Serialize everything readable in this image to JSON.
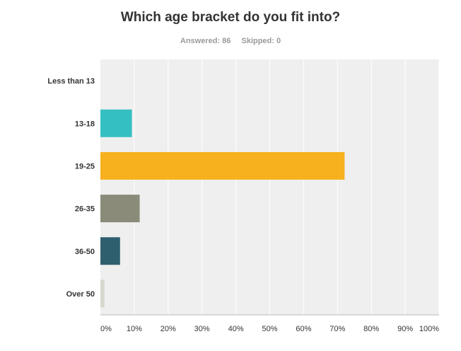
{
  "title": "Which age bracket do you fit into?",
  "summary": {
    "answered_label": "Answered: 86",
    "skipped_label": "Skipped: 0"
  },
  "chart_data": {
    "type": "bar",
    "orientation": "horizontal",
    "categories": [
      "Less than 13",
      "13-18",
      "19-25",
      "26-35",
      "36-50",
      "Over 50"
    ],
    "values": [
      0,
      9.3,
      72.1,
      11.6,
      5.8,
      1.2
    ],
    "colors": [
      "#3ec0c4",
      "#34bfc3",
      "#f7b01e",
      "#8b8b7a",
      "#2e5f6e",
      "#d7d7cf"
    ],
    "x_ticks": [
      "0%",
      "10%",
      "20%",
      "30%",
      "40%",
      "50%",
      "60%",
      "70%",
      "80%",
      "90%",
      "100%"
    ],
    "xlim": [
      0,
      100
    ],
    "grid": true,
    "plot_background": "#efefef"
  }
}
